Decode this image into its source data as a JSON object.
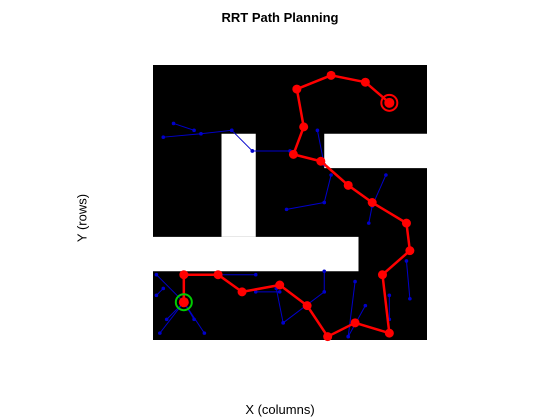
{
  "chart_data": {
    "type": "scatter",
    "title": "RRT Path Planning",
    "xlabel": "X (columns)",
    "ylabel": "Y (rows)",
    "xlim": [
      0,
      40
    ],
    "ylim": [
      0,
      40
    ],
    "y_reversed": true,
    "grid": false,
    "colors": {
      "obstacle": "#000000",
      "free": "#ffffff",
      "tree": "#0000cc",
      "path": "#ff0000",
      "start_ring": "#00cc00"
    },
    "free_space": [
      {
        "x": [
          10,
          15
        ],
        "y": [
          10,
          25
        ]
      },
      {
        "x": [
          0,
          30
        ],
        "y": [
          25,
          30
        ]
      },
      {
        "x": [
          25,
          40
        ],
        "y": [
          10,
          15
        ]
      }
    ],
    "tree_edges": [
      [
        [
          3,
          8.5
        ],
        [
          6,
          9.5
        ]
      ],
      [
        [
          1.5,
          10.5
        ],
        [
          7,
          10
        ]
      ],
      [
        [
          7,
          10
        ],
        [
          11.5,
          9.5
        ]
      ],
      [
        [
          11.5,
          9.5
        ],
        [
          14.5,
          12.5
        ]
      ],
      [
        [
          14.5,
          12.5
        ],
        [
          20,
          12.5
        ]
      ],
      [
        [
          24,
          9.5
        ],
        [
          25,
          14.5
        ]
      ],
      [
        [
          19.5,
          21
        ],
        [
          25,
          20
        ]
      ],
      [
        [
          25,
          20
        ],
        [
          26,
          16
        ]
      ],
      [
        [
          34,
          16
        ],
        [
          32,
          20.5
        ]
      ],
      [
        [
          31.5,
          23
        ],
        [
          32,
          20.5
        ]
      ],
      [
        [
          5,
          30.5
        ],
        [
          15,
          30.5
        ]
      ],
      [
        [
          0.5,
          30.5
        ],
        [
          4.5,
          34.5
        ]
      ],
      [
        [
          0.5,
          33.5
        ],
        [
          1.5,
          32.5
        ]
      ],
      [
        [
          4.5,
          34.5
        ],
        [
          7.5,
          39
        ]
      ],
      [
        [
          4.5,
          34.5
        ],
        [
          1,
          39
        ]
      ],
      [
        [
          4.5,
          34.5
        ],
        [
          2,
          37
        ]
      ],
      [
        [
          4.5,
          34.5
        ],
        [
          6,
          37
        ]
      ],
      [
        [
          15,
          33
        ],
        [
          18.5,
          33
        ]
      ],
      [
        [
          18,
          32.5
        ],
        [
          19,
          37.5
        ]
      ],
      [
        [
          19,
          37.5
        ],
        [
          25,
          33
        ]
      ],
      [
        [
          25,
          33
        ],
        [
          25,
          30
        ]
      ],
      [
        [
          29.5,
          31.5
        ],
        [
          28.5,
          39.5
        ]
      ],
      [
        [
          28.5,
          39.5
        ],
        [
          31,
          35
        ]
      ],
      [
        [
          34.5,
          37
        ],
        [
          34.5,
          33.5
        ]
      ],
      [
        [
          37.5,
          34
        ],
        [
          37,
          28.5
        ]
      ]
    ],
    "path": [
      [
        4.5,
        34.5
      ],
      [
        4.5,
        30.5
      ],
      [
        9.5,
        30.5
      ],
      [
        13,
        33
      ],
      [
        18.5,
        32
      ],
      [
        22.5,
        35
      ],
      [
        25.5,
        39.5
      ],
      [
        29.5,
        37.5
      ],
      [
        34.5,
        39
      ],
      [
        33.5,
        30.5
      ],
      [
        37.5,
        27
      ],
      [
        37,
        23
      ],
      [
        32,
        20
      ],
      [
        28.5,
        17.5
      ],
      [
        24.5,
        14
      ],
      [
        20.5,
        13
      ],
      [
        22,
        9
      ],
      [
        21,
        3.5
      ],
      [
        26,
        1.5
      ],
      [
        31,
        2.5
      ],
      [
        34.5,
        5.5
      ]
    ],
    "start": [
      4.5,
      34.5
    ],
    "goal": [
      34.5,
      5.5
    ]
  }
}
